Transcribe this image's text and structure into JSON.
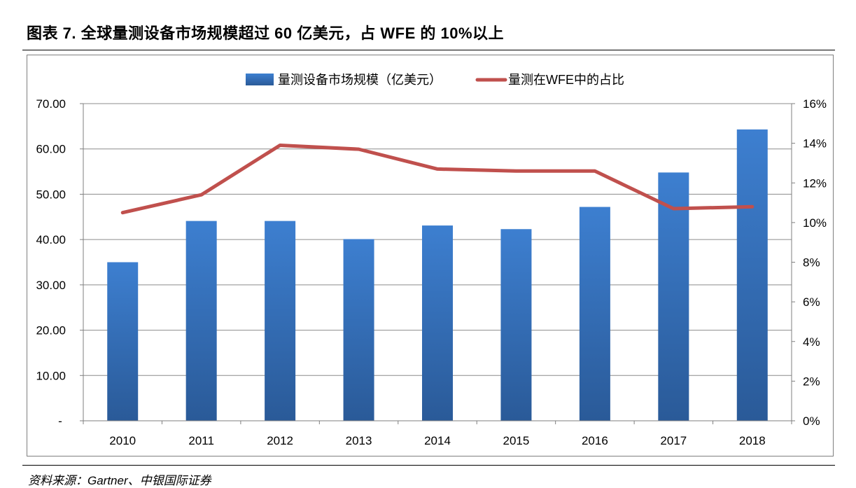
{
  "figure_title": "图表 7. 全球量测设备市场规模超过 60 亿美元，占 WFE 的 10%以上",
  "source": "资料来源：Gartner、中银国际证券",
  "colors": {
    "bar_top": "#3d7fd0",
    "bar_bottom": "#2a5a98",
    "line": "#c0504d",
    "grid": "#8c8c8c",
    "axis": "#7f7f7f"
  },
  "chart_data": {
    "type": "bar",
    "categories": [
      "2010",
      "2011",
      "2012",
      "2013",
      "2014",
      "2015",
      "2016",
      "2017",
      "2018"
    ],
    "series": [
      {
        "name": "量测设备市场规模（亿美元）",
        "type": "bar",
        "axis": "left",
        "values": [
          35.0,
          44.1,
          44.1,
          40.1,
          43.1,
          42.3,
          47.2,
          54.8,
          64.3
        ]
      },
      {
        "name": "量测在WFE中的占比",
        "type": "line",
        "axis": "right",
        "values": [
          0.105,
          0.114,
          0.139,
          0.137,
          0.127,
          0.126,
          0.126,
          0.107,
          0.108
        ]
      }
    ],
    "y_left": {
      "ylim": [
        0,
        70
      ],
      "ticks": [
        0,
        10,
        20,
        30,
        40,
        50,
        60,
        70
      ],
      "tick_labels": [
        "-",
        "10.00",
        "20.00",
        "30.00",
        "40.00",
        "50.00",
        "60.00",
        "70.00"
      ]
    },
    "y_right": {
      "ylim": [
        0,
        0.16
      ],
      "ticks": [
        0,
        0.02,
        0.04,
        0.06,
        0.08,
        0.1,
        0.12,
        0.14,
        0.16
      ],
      "tick_labels": [
        "0%",
        "2%",
        "4%",
        "6%",
        "8%",
        "10%",
        "12%",
        "14%",
        "16%"
      ]
    },
    "grid": true,
    "legend_position": "top-center"
  }
}
